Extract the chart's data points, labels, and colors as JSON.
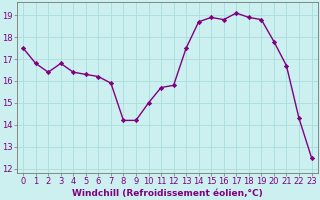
{
  "x": [
    0,
    1,
    2,
    3,
    4,
    5,
    6,
    7,
    8,
    9,
    10,
    11,
    12,
    13,
    14,
    15,
    16,
    17,
    18,
    19,
    20,
    21,
    22,
    23
  ],
  "y": [
    17.5,
    16.8,
    16.4,
    16.8,
    16.4,
    16.3,
    16.2,
    15.9,
    14.2,
    14.2,
    15.0,
    15.7,
    15.8,
    17.5,
    18.7,
    18.9,
    18.8,
    19.1,
    18.9,
    18.8,
    17.8,
    16.7,
    14.3,
    12.5
  ],
  "line_color": "#800080",
  "marker": "D",
  "marker_size": 2.2,
  "bg_color": "#ccf0f0",
  "grid_color": "#aadddd",
  "xlabel": "Windchill (Refroidissement éolien,°C)",
  "ylabel": "",
  "ylim": [
    11.8,
    19.6
  ],
  "xlim": [
    -0.5,
    23.5
  ],
  "yticks": [
    12,
    13,
    14,
    15,
    16,
    17,
    18,
    19
  ],
  "xticks": [
    0,
    1,
    2,
    3,
    4,
    5,
    6,
    7,
    8,
    9,
    10,
    11,
    12,
    13,
    14,
    15,
    16,
    17,
    18,
    19,
    20,
    21,
    22,
    23
  ],
  "tick_label_fontsize": 6.0,
  "xlabel_fontsize": 6.5,
  "line_width": 1.0,
  "spine_color": "#777777",
  "label_color": "#800080"
}
